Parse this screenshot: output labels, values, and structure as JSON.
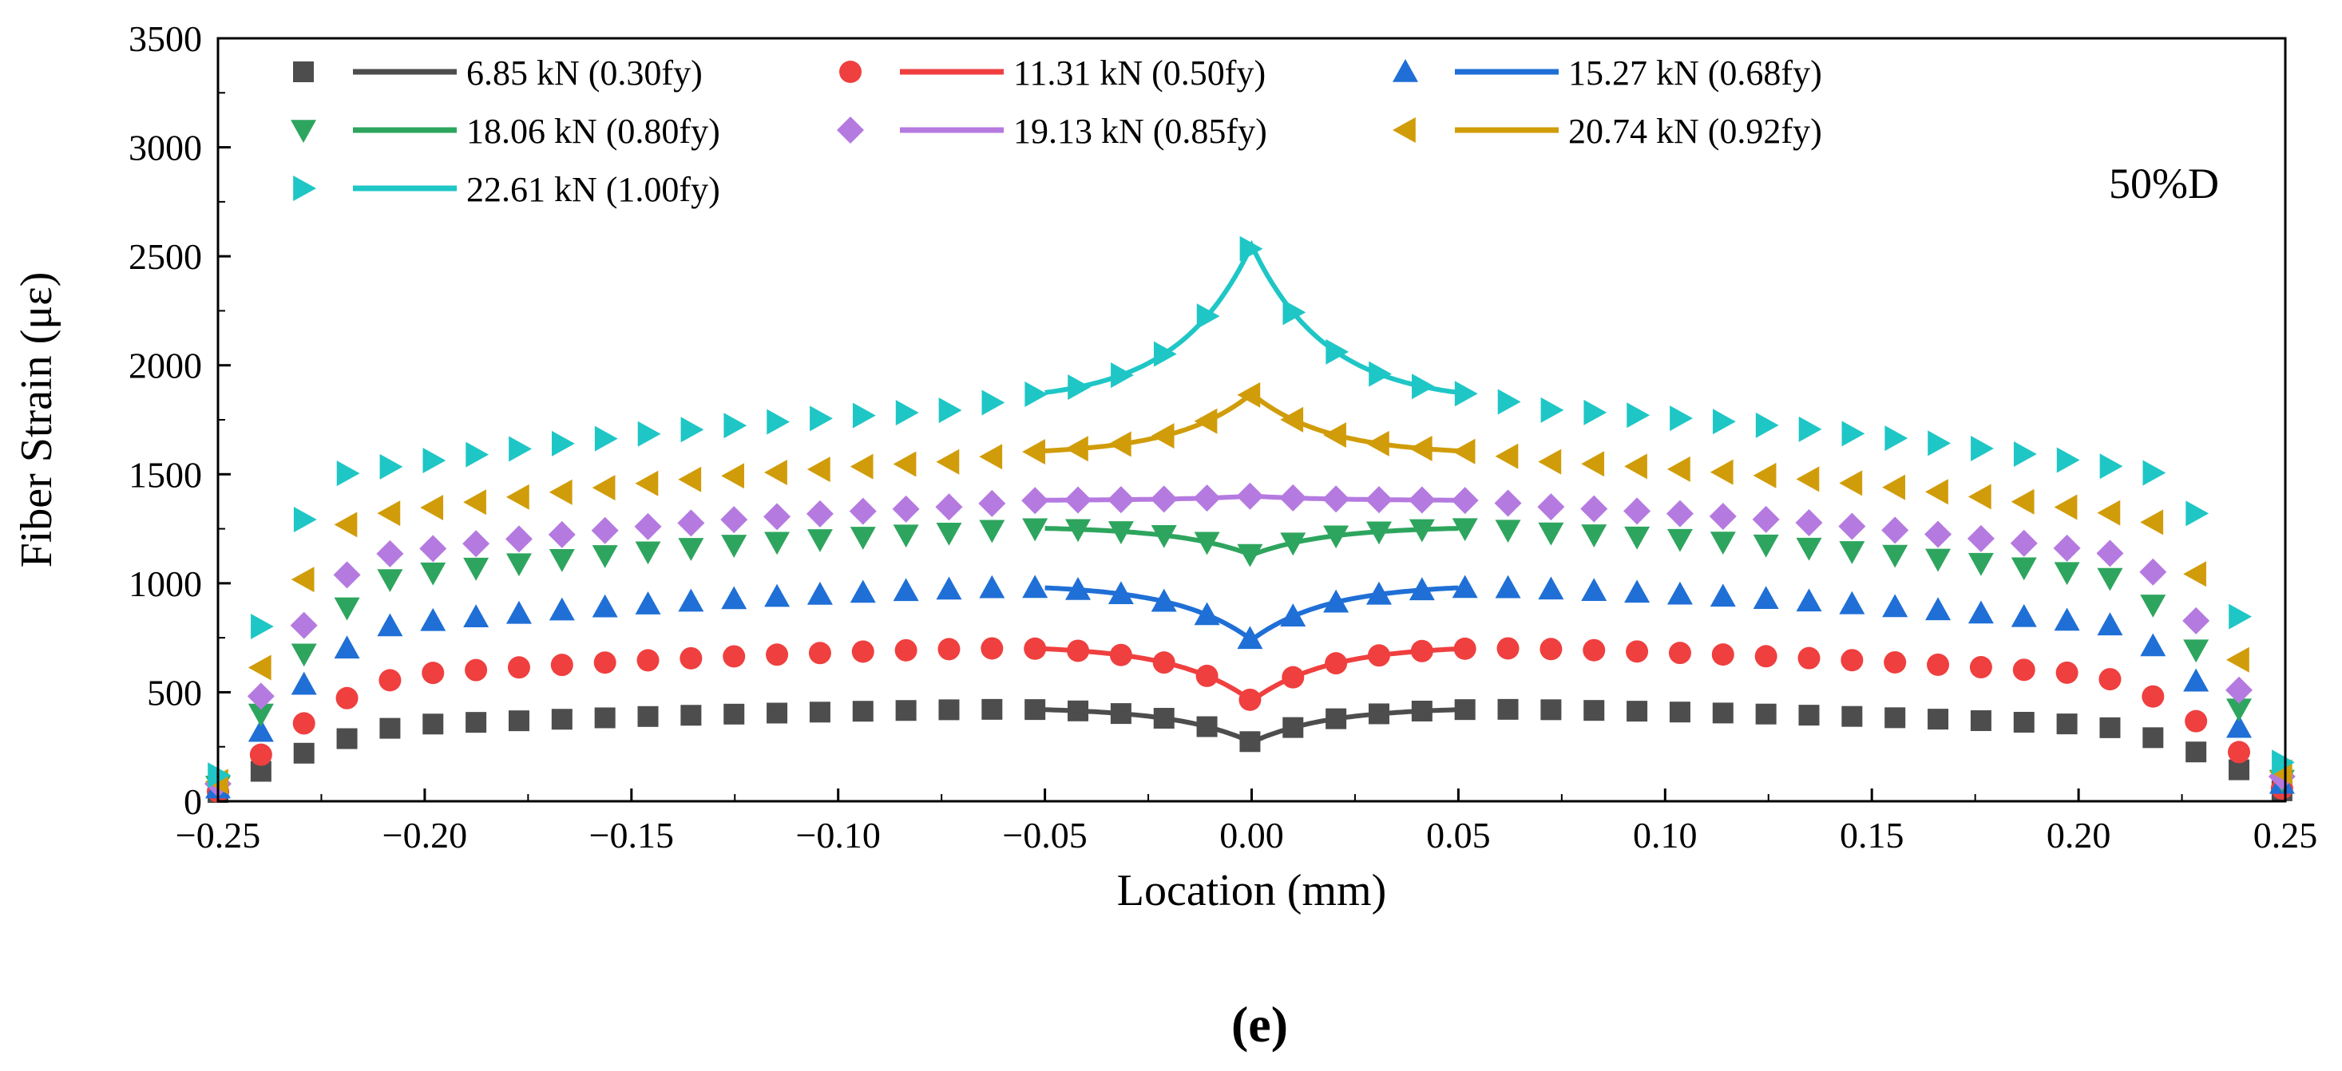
{
  "chart_data": {
    "type": "scatter",
    "title": "",
    "xlabel": "Location (mm)",
    "ylabel": "Fiber Strain (με)",
    "xlim": [
      -0.25,
      0.25
    ],
    "ylim": [
      0,
      3500
    ],
    "xticks": [
      -0.25,
      -0.2,
      -0.15,
      -0.1,
      -0.05,
      0,
      0.05,
      0.1,
      0.15,
      0.2,
      0.25
    ],
    "xtick_labels": [
      "−0.25",
      "−0.20",
      "−0.15",
      "−0.10",
      "−0.05",
      "0.00",
      "0.05",
      "0.10",
      "0.15",
      "0.20",
      "0.25"
    ],
    "yticks": [
      0,
      500,
      1000,
      1500,
      2000,
      2500,
      3000,
      3500
    ],
    "ytick_labels": [
      "0",
      "500",
      "1000",
      "1500",
      "2000",
      "2500",
      "3000",
      "3500"
    ],
    "annotation": "50%D",
    "caption": "(e)",
    "legend_position": "top-left",
    "fit_range": [
      -0.05,
      0.05
    ],
    "series": [
      {
        "name": "6.85 kN (0.30fy)",
        "color": "#4d4d4d",
        "marker": "square",
        "peak": 430,
        "mid": 270,
        "edge": 40,
        "knee": 0.2
      },
      {
        "name": "11.31 kN (0.50fy)",
        "color": "#ef3f3f",
        "marker": "circle",
        "peak": 715,
        "mid": 460,
        "edge": 45,
        "knee": 0.2
      },
      {
        "name": "15.27 kN (0.68fy)",
        "color": "#1f6fd6",
        "marker": "triangle-up",
        "peak": 995,
        "mid": 740,
        "edge": 60,
        "knee": 0.205
      },
      {
        "name": "18.06 kN (0.80fy)",
        "color": "#2ea55e",
        "marker": "triangle-down",
        "peak": 1260,
        "mid": 1130,
        "edge": 70,
        "knee": 0.205
      },
      {
        "name": "19.13 kN (0.85fy)",
        "color": "#b57ae0",
        "marker": "diamond",
        "peak": 1380,
        "mid": 1400,
        "edge": 80,
        "knee": 0.21
      },
      {
        "name": "20.74 kN (0.92fy)",
        "color": "#d19c0a",
        "marker": "triangle-left",
        "peak": 1590,
        "mid": 1870,
        "edge": 90,
        "knee": 0.215
      },
      {
        "name": "22.61 kN (1.00fy)",
        "color": "#1fc6c6",
        "marker": "triangle-right",
        "peak": 1830,
        "mid": 2550,
        "edge": 120,
        "knee": 0.22
      }
    ]
  }
}
